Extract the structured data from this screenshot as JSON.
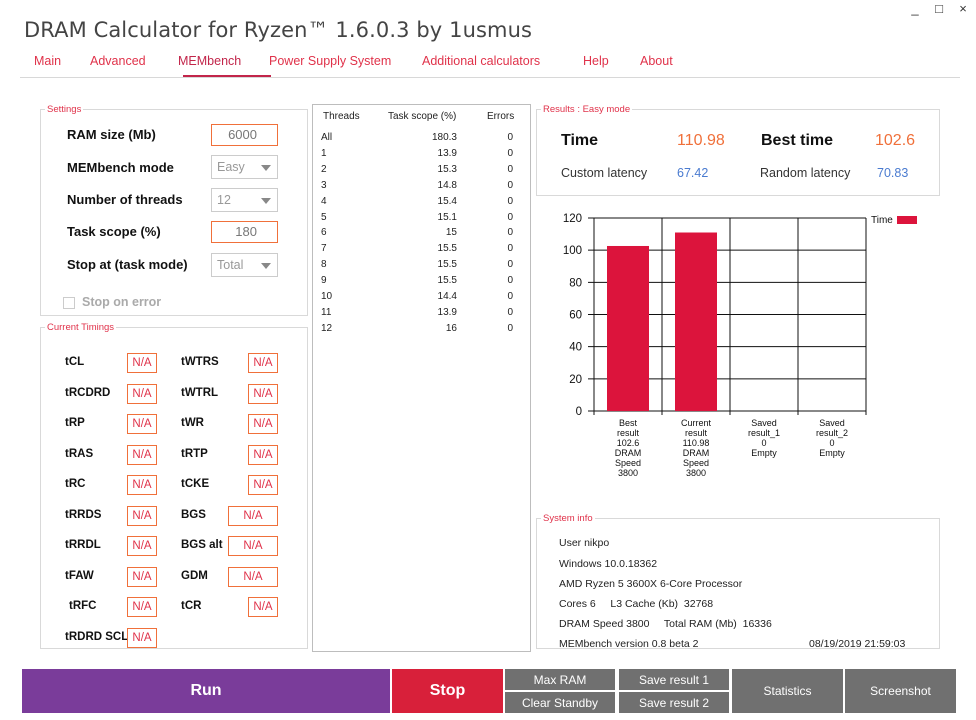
{
  "app": {
    "title": "DRAM Calculator for Ryzen™ 1.6.0.3 by 1usmus"
  },
  "window": {
    "minimize": "_",
    "maximize": "□",
    "close": "×"
  },
  "tabs": [
    {
      "label": "Main"
    },
    {
      "label": "Advanced"
    },
    {
      "label": "MEMbench"
    },
    {
      "label": "Power Supply System"
    },
    {
      "label": "Additional calculators"
    },
    {
      "label": "Help"
    },
    {
      "label": "About"
    }
  ],
  "settings": {
    "legend": "Settings",
    "ram_size_label": "RAM size (Mb)",
    "ram_size_value": "6000",
    "mode_label": "MEMbench mode",
    "mode_value": "Easy",
    "threads_label": "Number of threads",
    "threads_value": "12",
    "task_scope_label": "Task scope (%)",
    "task_scope_value": "180",
    "stop_at_label": "Stop at (task mode)",
    "stop_at_value": "Total",
    "stop_on_error_label": "Stop on error"
  },
  "timings": {
    "legend": "Current Timings",
    "left": [
      {
        "name": "tCL",
        "value": "N/A"
      },
      {
        "name": "tRCDRD",
        "value": "N/A"
      },
      {
        "name": "tRP",
        "value": "N/A"
      },
      {
        "name": "tRAS",
        "value": "N/A"
      },
      {
        "name": "tRC",
        "value": "N/A"
      },
      {
        "name": "tRRDS",
        "value": "N/A"
      },
      {
        "name": "tRRDL",
        "value": "N/A"
      },
      {
        "name": "tFAW",
        "value": "N/A"
      },
      {
        "name": "tRFC",
        "value": "N/A"
      },
      {
        "name": "tRDRD SCL",
        "value": "N/A"
      }
    ],
    "right": [
      {
        "name": "tWTRS",
        "value": "N/A"
      },
      {
        "name": "tWTRL",
        "value": "N/A"
      },
      {
        "name": "tWR",
        "value": "N/A"
      },
      {
        "name": "tRTP",
        "value": "N/A"
      },
      {
        "name": "tCKE",
        "value": "N/A"
      },
      {
        "name": "BGS",
        "value": "N/A"
      },
      {
        "name": "BGS alt",
        "value": "N/A"
      },
      {
        "name": "GDM",
        "value": "N/A"
      },
      {
        "name": "tCR",
        "value": "N/A"
      }
    ]
  },
  "threads_table": {
    "headers": [
      "Threads",
      "Task scope (%)",
      "Errors"
    ],
    "rows": [
      [
        "All",
        "180.3",
        "0"
      ],
      [
        "1",
        "13.9",
        "0"
      ],
      [
        "2",
        "15.3",
        "0"
      ],
      [
        "3",
        "14.8",
        "0"
      ],
      [
        "4",
        "15.4",
        "0"
      ],
      [
        "5",
        "15.1",
        "0"
      ],
      [
        "6",
        "15",
        "0"
      ],
      [
        "7",
        "15.5",
        "0"
      ],
      [
        "8",
        "15.5",
        "0"
      ],
      [
        "9",
        "15.5",
        "0"
      ],
      [
        "10",
        "14.4",
        "0"
      ],
      [
        "11",
        "13.9",
        "0"
      ],
      [
        "12",
        "16",
        "0"
      ]
    ]
  },
  "results": {
    "legend": "Results : Easy mode",
    "time_label": "Time",
    "time_value": "110.98",
    "best_time_label": "Best time",
    "best_time_value": "102.6",
    "custom_latency_label": "Custom latency",
    "custom_latency_value": "67.42",
    "random_latency_label": "Random latency",
    "random_latency_value": "70.83"
  },
  "chart_data": {
    "type": "bar",
    "categories": [
      [
        "Best",
        "result",
        "102.6",
        "DRAM",
        "Speed",
        "3800"
      ],
      [
        "Current",
        "result",
        "110.98",
        "DRAM",
        "Speed",
        "3800"
      ],
      [
        "Saved",
        "result_1",
        "0",
        "Empty"
      ],
      [
        "Saved",
        "result_2",
        "0",
        "Empty"
      ]
    ],
    "values": [
      102.6,
      110.98,
      0,
      0
    ],
    "series_name": "Time",
    "ylim": [
      0,
      120
    ],
    "yticks": [
      0,
      20,
      40,
      60,
      80,
      100,
      120
    ],
    "grid": true,
    "legend_position": "top-right",
    "bar_color": "#dc143c"
  },
  "system_info": {
    "legend": "System info",
    "user": "User nikpo",
    "os": "Windows 10.0.18362",
    "cpu": "AMD Ryzen 5 3600X 6-Core Processor",
    "cores": "Cores 6     L3 Cache (Kb)  32768",
    "dram": "DRAM Speed 3800     Total RAM (Mb)  16336",
    "version": "MEMbench version 0.8 beta 2",
    "datetime": "08/19/2019 21:59:03"
  },
  "buttons": {
    "run": "Run",
    "stop": "Stop",
    "max_ram": "Max RAM",
    "clear_standby": "Clear Standby",
    "save_result_1": "Save result 1",
    "save_result_2": "Save result 2",
    "statistics": "Statistics",
    "screenshot": "Screenshot"
  }
}
